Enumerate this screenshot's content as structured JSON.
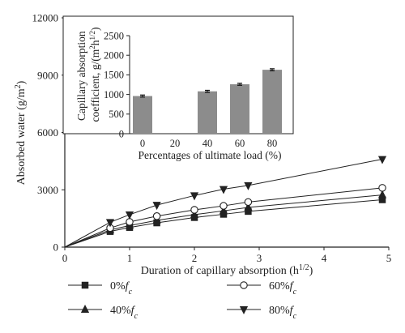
{
  "chart_data": [
    {
      "type": "line",
      "xlabel": "Duration of capillary absorption (h^1/2)",
      "ylabel": "Absorbed water (g/m^2)",
      "xlim": [
        0,
        5
      ],
      "ylim": [
        0,
        12000
      ],
      "xticks": [
        "0",
        "1",
        "2",
        "3",
        "4",
        "5"
      ],
      "yticks": [
        "0",
        "3000",
        "6000",
        "9000",
        "12000"
      ],
      "x": [
        0,
        0.7,
        1.0,
        1.42,
        2.0,
        2.45,
        2.83,
        4.9
      ],
      "series": [
        {
          "name": "0%fc",
          "marker": "square",
          "values": [
            0,
            820,
            1030,
            1270,
            1550,
            1720,
            1870,
            2480
          ]
        },
        {
          "name": "40%fc",
          "marker": "triangle-up",
          "values": [
            0,
            900,
            1130,
            1400,
            1700,
            1900,
            2080,
            2730
          ]
        },
        {
          "name": "60%fc",
          "marker": "circle-open",
          "values": [
            0,
            1000,
            1320,
            1620,
            1950,
            2160,
            2360,
            3100
          ]
        },
        {
          "name": "80%fc",
          "marker": "triangle-down",
          "values": [
            0,
            1300,
            1700,
            2200,
            2700,
            3030,
            3230,
            4600
          ]
        }
      ],
      "legend": {
        "position": "bottom",
        "entries": [
          {
            "prefix": "0%",
            "sub": "c"
          },
          {
            "prefix": "60%",
            "sub": "c"
          },
          {
            "prefix": "40%",
            "sub": "c"
          },
          {
            "prefix": "80%",
            "sub": "c"
          }
        ]
      }
    },
    {
      "type": "bar",
      "xlabel": "Percentages of ultimate load (%)",
      "ylabel_line1": "Capillary absorption",
      "ylabel_line2": "coefficient, g/(m",
      "categories": [
        "0",
        "20",
        "40",
        "60",
        "80"
      ],
      "values": [
        960,
        null,
        1080,
        1260,
        1630
      ],
      "errors": [
        25,
        null,
        25,
        25,
        25
      ],
      "ylim": [
        0,
        2500
      ],
      "yticks": [
        "0",
        "500",
        "1000",
        "1500",
        "2000",
        "2500"
      ],
      "bar_color": "#8c8c8c"
    }
  ]
}
